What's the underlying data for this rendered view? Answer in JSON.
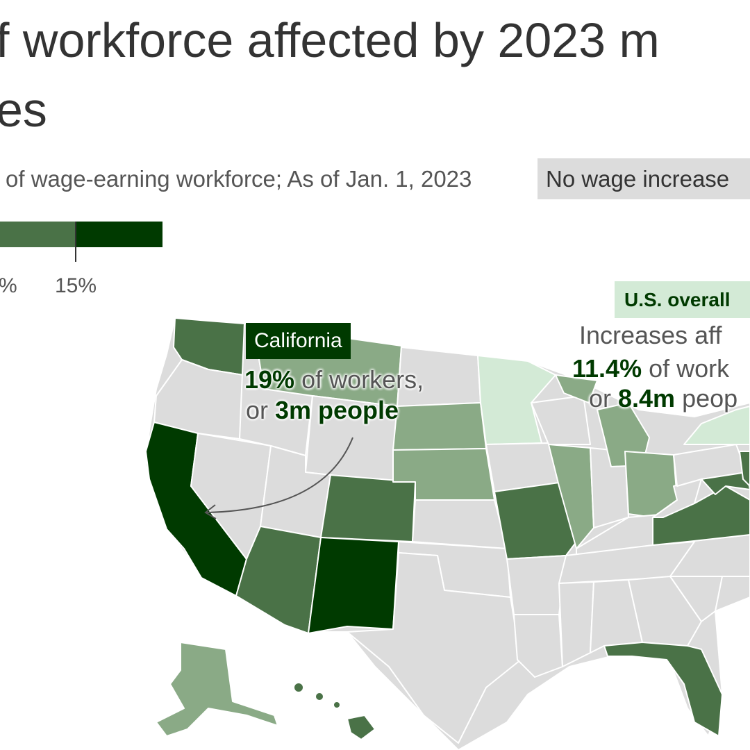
{
  "title_line1": "f workforce affected by 2023 m",
  "title_line2": "es",
  "subtitle": "of wage-earning workforce; As of Jan. 1, 2023",
  "legend": {
    "no_increase_label": "No wage increase",
    "tick_labels": [
      "%",
      "15%"
    ],
    "colors": [
      "#8aaa86",
      "#4a7247",
      "#003a00"
    ],
    "no_increase_color": "#dcdcdc"
  },
  "california_annotation": {
    "tag": "California",
    "line1_value": "19%",
    "line1_text": " of workers,",
    "line2_prefix": "or ",
    "line2_value": "3m people"
  },
  "us_annotation": {
    "tag": "U.S. overall",
    "line1": "Increases aff",
    "line2_value": "11.4%",
    "line2_text": " of work",
    "line3_prefix": "or ",
    "line3_value": "8.4m",
    "line3_text": " peop"
  },
  "map_colors": {
    "none": "#dcdcdc",
    "light": "#d3ead6",
    "low": "#8aaa86",
    "mid": "#4a7247",
    "high": "#003a00",
    "border": "#ffffff"
  },
  "state_shading": [
    {
      "state": "Washington",
      "level": "mid"
    },
    {
      "state": "Oregon",
      "level": "none"
    },
    {
      "state": "California",
      "level": "high"
    },
    {
      "state": "Nevada",
      "level": "none"
    },
    {
      "state": "Idaho",
      "level": "none"
    },
    {
      "state": "Montana",
      "level": "low"
    },
    {
      "state": "Wyoming",
      "level": "none"
    },
    {
      "state": "Utah",
      "level": "none"
    },
    {
      "state": "Arizona",
      "level": "mid"
    },
    {
      "state": "Colorado",
      "level": "mid"
    },
    {
      "state": "New Mexico",
      "level": "high"
    },
    {
      "state": "North Dakota",
      "level": "none"
    },
    {
      "state": "South Dakota",
      "level": "low"
    },
    {
      "state": "Nebraska",
      "level": "low"
    },
    {
      "state": "Kansas",
      "level": "none"
    },
    {
      "state": "Oklahoma",
      "level": "none"
    },
    {
      "state": "Texas",
      "level": "none"
    },
    {
      "state": "Minnesota",
      "level": "light"
    },
    {
      "state": "Iowa",
      "level": "none"
    },
    {
      "state": "Missouri",
      "level": "mid"
    },
    {
      "state": "Arkansas",
      "level": "none"
    },
    {
      "state": "Louisiana",
      "level": "none"
    },
    {
      "state": "Wisconsin",
      "level": "none"
    },
    {
      "state": "Illinois",
      "level": "low"
    },
    {
      "state": "Michigan",
      "level": "low"
    },
    {
      "state": "Indiana",
      "level": "none"
    },
    {
      "state": "Ohio",
      "level": "low"
    },
    {
      "state": "Kentucky",
      "level": "none"
    },
    {
      "state": "Tennessee",
      "level": "none"
    },
    {
      "state": "Mississippi",
      "level": "none"
    },
    {
      "state": "Alabama",
      "level": "none"
    },
    {
      "state": "Georgia",
      "level": "none"
    },
    {
      "state": "Florida",
      "level": "mid"
    },
    {
      "state": "South Carolina",
      "level": "none"
    },
    {
      "state": "North Carolina",
      "level": "none"
    },
    {
      "state": "Virginia",
      "level": "mid"
    },
    {
      "state": "West Virginia",
      "level": "none"
    },
    {
      "state": "Pennsylvania",
      "level": "none"
    },
    {
      "state": "New York",
      "level": "light"
    },
    {
      "state": "Maryland",
      "level": "mid"
    },
    {
      "state": "Delaware",
      "level": "mid"
    },
    {
      "state": "New Jersey",
      "level": "mid"
    },
    {
      "state": "Alaska",
      "level": "low"
    },
    {
      "state": "Hawaii",
      "level": "mid"
    }
  ]
}
